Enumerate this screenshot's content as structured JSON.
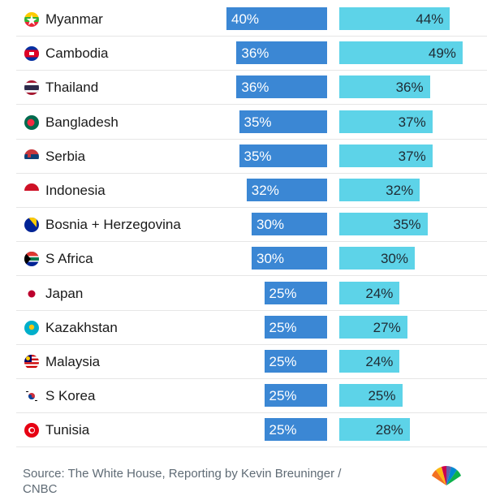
{
  "chart_data": {
    "type": "bar",
    "categories": [
      "Myanmar",
      "Cambodia",
      "Thailand",
      "Bangladesh",
      "Serbia",
      "Indonesia",
      "Bosnia + Herzegovina",
      "S Africa",
      "Japan",
      "Kazakhstan",
      "Malaysia",
      "S Korea",
      "Tunisia"
    ],
    "series": [
      {
        "values": [
          40,
          36,
          36,
          35,
          35,
          32,
          30,
          30,
          25,
          25,
          25,
          25,
          25
        ],
        "labels": [
          "40%",
          "36%",
          "36%",
          "35%",
          "35%",
          "32%",
          "30%",
          "30%",
          "25%",
          "25%",
          "25%",
          "25%",
          "25%"
        ],
        "color": "#3b87d4"
      },
      {
        "values": [
          44,
          49,
          36,
          37,
          37,
          32,
          35,
          30,
          24,
          27,
          24,
          25,
          28
        ],
        "labels": [
          "44%",
          "49%",
          "36%",
          "37%",
          "37%",
          "32%",
          "35%",
          "30%",
          "24%",
          "27%",
          "24%",
          "25%",
          "28%"
        ],
        "color": "#5dd3e8"
      }
    ],
    "flag_icons": [
      "myanmar-flag-icon",
      "cambodia-flag-icon",
      "thailand-flag-icon",
      "bangladesh-flag-icon",
      "serbia-flag-icon",
      "indonesia-flag-icon",
      "bosnia-herzegovina-flag-icon",
      "south-africa-flag-icon",
      "japan-flag-icon",
      "kazakhstan-flag-icon",
      "malaysia-flag-icon",
      "south-korea-flag-icon",
      "tunisia-flag-icon"
    ]
  },
  "footer": {
    "source_line_1": "Source: The White House, Reporting by Kevin Breuninger /",
    "source_line_2": "CNBC"
  },
  "logo": {
    "name": "cnbc-peacock-logo"
  }
}
